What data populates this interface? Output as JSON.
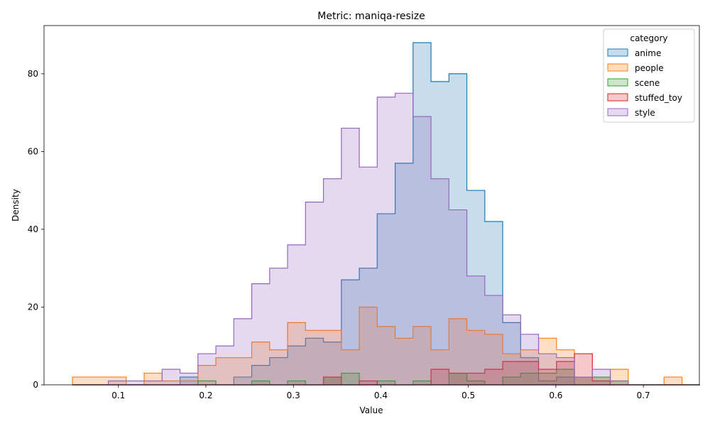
{
  "chart_data": {
    "type": "histogram",
    "title": "Metric: maniqa-resize",
    "xlabel": "Value",
    "ylabel": "Density",
    "xlim": [
      0.015,
      0.764
    ],
    "ylim": [
      0,
      92.4
    ],
    "x_ticks": [
      0.1,
      0.2,
      0.3,
      0.4,
      0.5,
      0.6,
      0.7
    ],
    "y_ticks": [
      0,
      20,
      40,
      60,
      80
    ],
    "x_tick_labels": [
      "0.1",
      "0.2",
      "0.3",
      "0.4",
      "0.5",
      "0.6",
      "0.7"
    ],
    "y_tick_labels": [
      "0",
      "20",
      "40",
      "60",
      "80"
    ],
    "grid": false,
    "legend": {
      "title": "category",
      "placement": "top-right"
    },
    "bin_start": 0.0475,
    "bin_width": 0.02049,
    "series": [
      {
        "name": "anime",
        "color": "#1f77b4",
        "values": [
          0,
          0,
          0,
          0,
          0,
          0,
          2,
          0,
          0,
          2,
          5,
          7,
          10,
          12,
          11,
          27,
          30,
          44,
          57,
          88,
          78,
          80,
          50,
          42,
          16,
          7,
          1,
          2,
          0,
          0,
          0,
          0,
          0,
          0,
          0
        ]
      },
      {
        "name": "people",
        "color": "#ff7f0e",
        "values": [
          2,
          2,
          2,
          0,
          3,
          1,
          1,
          5,
          7,
          7,
          11,
          9,
          16,
          14,
          14,
          9,
          20,
          15,
          12,
          15,
          9,
          17,
          14,
          13,
          8,
          9,
          12,
          9,
          2,
          2,
          4,
          0,
          0,
          2,
          0
        ]
      },
      {
        "name": "scene",
        "color": "#2ca02c",
        "values": [
          0,
          0,
          0,
          0,
          0,
          0,
          0,
          1,
          0,
          0,
          1,
          0,
          1,
          0,
          2,
          3,
          0,
          1,
          0,
          1,
          0,
          3,
          1,
          0,
          2,
          3,
          3,
          4,
          2,
          2,
          1,
          0,
          0,
          0,
          0
        ]
      },
      {
        "name": "stuffed_toy",
        "color": "#d62728",
        "values": [
          0,
          0,
          0,
          0,
          0,
          0,
          0,
          0,
          0,
          0,
          0,
          0,
          0,
          0,
          2,
          0,
          1,
          0,
          0,
          0,
          4,
          3,
          3,
          4,
          6,
          6,
          4,
          6,
          8,
          1,
          0,
          0,
          0,
          0,
          0
        ]
      },
      {
        "name": "style",
        "color": "#9467bd",
        "values": [
          0,
          0,
          1,
          1,
          1,
          4,
          3,
          8,
          10,
          17,
          26,
          30,
          36,
          47,
          53,
          66,
          56,
          74,
          75,
          69,
          53,
          45,
          28,
          23,
          18,
          13,
          8,
          7,
          2,
          4,
          1,
          0,
          0,
          0,
          0
        ]
      }
    ]
  }
}
